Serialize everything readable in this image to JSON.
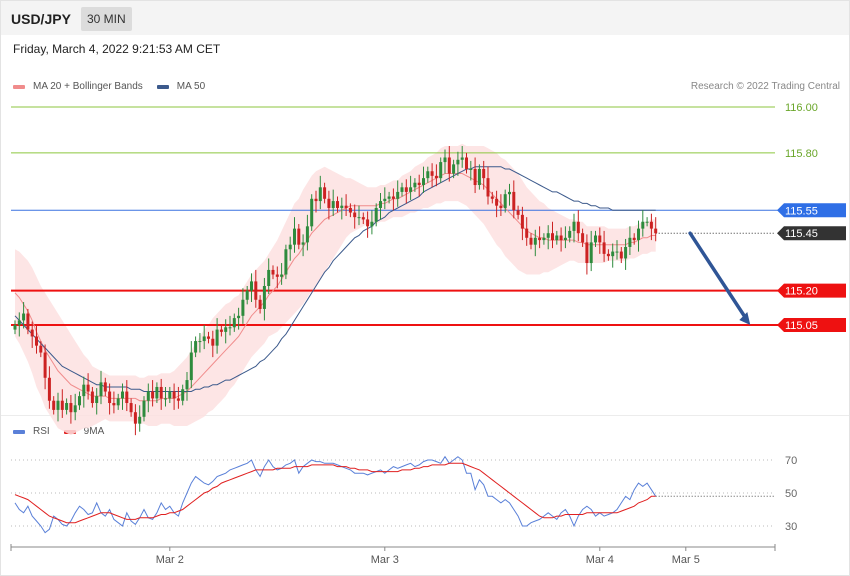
{
  "header": {
    "symbol": "USD/JPY",
    "timeframe": "30 MIN"
  },
  "datetime": "Friday, March 4, 2022 9:21:53 AM CET",
  "copyright": "Research © 2022 Trading Central",
  "colors": {
    "up": "#2e8b3d",
    "down": "#cc2222",
    "ma20": "#f08c8c",
    "band_fill": "#fde0e0",
    "ma50": "#3c5a8c",
    "support": "#ee1111",
    "green_level": "#8cc63f",
    "blue_level": "#3a72e0",
    "current": "#333333",
    "arrow": "#2f5596",
    "rsi": "#5a80d8",
    "rsi_ma": "#e02020"
  },
  "chart_data": [
    {
      "type": "candlestick",
      "symbol": "USD/JPY",
      "timeframe": "30 MIN",
      "legend": [
        {
          "name": "MA 20 + Bollinger Bands",
          "color": "#f08c8c"
        },
        {
          "name": "MA 50",
          "color": "#3c5a8c"
        }
      ],
      "legend_position": "top-left",
      "ylim": [
        114.56,
        116.07
      ],
      "x_ticks": [
        {
          "label": "Mar 2",
          "index": 36
        },
        {
          "label": "Mar 3",
          "index": 86
        },
        {
          "label": "Mar 4",
          "index": 136
        },
        {
          "label": "Mar 5",
          "index": 156
        }
      ],
      "levels": [
        {
          "label": "116.00",
          "value": 116.0,
          "style": "resistance",
          "color": "#8cc63f"
        },
        {
          "label": "115.80",
          "value": 115.8,
          "style": "resistance",
          "color": "#8cc63f"
        },
        {
          "label": "115.55",
          "value": 115.55,
          "style": "pivot",
          "color": "#3a72e0"
        },
        {
          "label": "115.45",
          "value": 115.45,
          "style": "current",
          "color": "#333333"
        },
        {
          "label": "115.20",
          "value": 115.2,
          "style": "support",
          "color": "#ee1111"
        },
        {
          "label": "115.05",
          "value": 115.05,
          "style": "support",
          "color": "#ee1111"
        }
      ],
      "forecast_arrow": {
        "from": {
          "index": 157,
          "value": 115.45
        },
        "to": {
          "index": 171,
          "value": 115.05
        }
      },
      "close": [
        115.05,
        115.07,
        115.1,
        115.03,
        115.0,
        114.96,
        114.93,
        114.82,
        114.72,
        114.68,
        114.72,
        114.68,
        114.71,
        114.67,
        114.7,
        114.74,
        114.79,
        114.76,
        114.71,
        114.74,
        114.8,
        114.76,
        114.71,
        114.7,
        114.73,
        114.76,
        114.71,
        114.67,
        114.62,
        114.65,
        114.72,
        114.76,
        114.73,
        114.78,
        114.73,
        114.73,
        114.76,
        114.73,
        114.72,
        114.77,
        114.81,
        114.93,
        114.98,
        114.98,
        115.0,
        114.99,
        114.96,
        115.03,
        115.02,
        115.04,
        115.04,
        115.08,
        115.09,
        115.16,
        115.2,
        115.24,
        115.16,
        115.12,
        115.22,
        115.29,
        115.27,
        115.26,
        115.27,
        115.38,
        115.4,
        115.47,
        115.4,
        115.41,
        115.48,
        115.6,
        115.59,
        115.65,
        115.6,
        115.56,
        115.59,
        115.56,
        115.57,
        115.56,
        115.54,
        115.52,
        115.52,
        115.51,
        115.48,
        115.5,
        115.56,
        115.59,
        115.6,
        115.61,
        115.6,
        115.63,
        115.65,
        115.63,
        115.65,
        115.67,
        115.66,
        115.69,
        115.72,
        115.7,
        115.69,
        115.76,
        115.78,
        115.71,
        115.75,
        115.77,
        115.78,
        115.73,
        115.73,
        115.66,
        115.73,
        115.69,
        115.61,
        115.6,
        115.57,
        115.56,
        115.62,
        115.63,
        115.55,
        115.53,
        115.47,
        115.43,
        115.4,
        115.43,
        115.42,
        115.43,
        115.45,
        115.42,
        115.44,
        115.42,
        115.43,
        115.46,
        115.5,
        115.45,
        115.41,
        115.32,
        115.41,
        115.44,
        115.41,
        115.36,
        115.35,
        115.37,
        115.37,
        115.34,
        115.39,
        115.43,
        115.42,
        115.47,
        115.5,
        115.5,
        115.47,
        115.45
      ],
      "ma20": [
        115.19,
        115.17,
        115.14,
        115.11,
        115.07,
        115.02,
        114.98,
        114.94,
        114.91,
        114.88,
        114.85,
        114.83,
        114.81,
        114.79,
        114.78,
        114.77,
        114.76,
        114.75,
        114.74,
        114.74,
        114.74,
        114.74,
        114.73,
        114.73,
        114.73,
        114.73,
        114.73,
        114.73,
        114.73,
        114.72,
        114.72,
        114.72,
        114.72,
        114.72,
        114.73,
        114.73,
        114.73,
        114.73,
        114.74,
        114.75,
        114.76,
        114.78,
        114.8,
        114.82,
        114.84,
        114.86,
        114.88,
        114.9,
        114.92,
        114.94,
        114.96,
        114.98,
        115.0,
        115.03,
        115.06,
        115.09,
        115.11,
        115.13,
        115.15,
        115.18,
        115.2,
        115.22,
        115.25,
        115.28,
        115.31,
        115.34,
        115.36,
        115.39,
        115.42,
        115.45,
        115.47,
        115.49,
        115.51,
        115.52,
        115.53,
        115.54,
        115.55,
        115.56,
        115.57,
        115.57,
        115.57,
        115.57,
        115.57,
        115.57,
        115.57,
        115.58,
        115.58,
        115.59,
        115.6,
        115.6,
        115.61,
        115.62,
        115.63,
        115.64,
        115.65,
        115.66,
        115.67,
        115.68,
        115.69,
        115.7,
        115.71,
        115.71,
        115.71,
        115.71,
        115.71,
        115.7,
        115.69,
        115.68,
        115.67,
        115.66,
        115.64,
        115.62,
        115.6,
        115.58,
        115.56,
        115.54,
        115.52,
        115.5,
        115.48,
        115.46,
        115.45,
        115.44,
        115.43,
        115.43,
        115.42,
        115.42,
        115.42,
        115.42,
        115.42,
        115.42,
        115.42,
        115.41,
        115.41,
        115.4,
        115.4,
        115.4,
        115.4,
        115.4,
        115.4,
        115.4,
        115.4,
        115.4,
        115.4,
        115.41,
        115.41,
        115.42,
        115.43,
        115.43,
        115.44,
        115.44
      ],
      "band_width": [
        0.19,
        0.2,
        0.21,
        0.22,
        0.23,
        0.24,
        0.24,
        0.25,
        0.25,
        0.25,
        0.25,
        0.24,
        0.23,
        0.22,
        0.2,
        0.18,
        0.16,
        0.15,
        0.13,
        0.12,
        0.11,
        0.1,
        0.1,
        0.1,
        0.1,
        0.1,
        0.1,
        0.1,
        0.1,
        0.1,
        0.1,
        0.11,
        0.11,
        0.11,
        0.11,
        0.11,
        0.11,
        0.12,
        0.13,
        0.14,
        0.15,
        0.16,
        0.17,
        0.18,
        0.19,
        0.19,
        0.2,
        0.2,
        0.2,
        0.2,
        0.19,
        0.19,
        0.18,
        0.18,
        0.18,
        0.18,
        0.18,
        0.18,
        0.18,
        0.18,
        0.19,
        0.2,
        0.21,
        0.22,
        0.23,
        0.24,
        0.24,
        0.25,
        0.25,
        0.25,
        0.25,
        0.24,
        0.23,
        0.21,
        0.19,
        0.17,
        0.15,
        0.13,
        0.12,
        0.11,
        0.1,
        0.09,
        0.08,
        0.08,
        0.08,
        0.08,
        0.08,
        0.08,
        0.08,
        0.08,
        0.09,
        0.09,
        0.09,
        0.1,
        0.1,
        0.1,
        0.11,
        0.11,
        0.11,
        0.12,
        0.12,
        0.12,
        0.12,
        0.12,
        0.13,
        0.13,
        0.14,
        0.15,
        0.16,
        0.17,
        0.18,
        0.19,
        0.2,
        0.2,
        0.21,
        0.21,
        0.21,
        0.21,
        0.2,
        0.19,
        0.18,
        0.17,
        0.16,
        0.15,
        0.14,
        0.13,
        0.12,
        0.11,
        0.1,
        0.09,
        0.09,
        0.09,
        0.09,
        0.08,
        0.08,
        0.08,
        0.08,
        0.08,
        0.07,
        0.07,
        0.07,
        0.07,
        0.07,
        0.07,
        0.07,
        0.07,
        0.07,
        0.07,
        0.07,
        0.07
      ],
      "ma50": [
        115.09,
        115.07,
        115.05,
        115.03,
        115.01,
        114.99,
        114.97,
        114.95,
        114.93,
        114.91,
        114.89,
        114.87,
        114.86,
        114.85,
        114.84,
        114.83,
        114.82,
        114.81,
        114.8,
        114.79,
        114.79,
        114.78,
        114.78,
        114.78,
        114.78,
        114.78,
        114.78,
        114.77,
        114.77,
        114.77,
        114.76,
        114.76,
        114.76,
        114.76,
        114.76,
        114.76,
        114.76,
        114.76,
        114.76,
        114.76,
        114.76,
        114.76,
        114.77,
        114.77,
        114.78,
        114.78,
        114.79,
        114.79,
        114.8,
        114.81,
        114.81,
        114.82,
        114.83,
        114.84,
        114.85,
        114.86,
        114.87,
        114.89,
        114.9,
        114.92,
        114.94,
        114.96,
        114.99,
        115.01,
        115.04,
        115.07,
        115.1,
        115.13,
        115.16,
        115.19,
        115.22,
        115.25,
        115.28,
        115.3,
        115.33,
        115.35,
        115.37,
        115.39,
        115.41,
        115.43,
        115.44,
        115.46,
        115.47,
        115.48,
        115.5,
        115.51,
        115.52,
        115.54,
        115.55,
        115.56,
        115.57,
        115.58,
        115.59,
        115.6,
        115.61,
        115.63,
        115.64,
        115.65,
        115.66,
        115.67,
        115.68,
        115.69,
        115.7,
        115.71,
        115.72,
        115.73,
        115.73,
        115.74,
        115.74,
        115.74,
        115.74,
        115.74,
        115.74,
        115.74,
        115.73,
        115.73,
        115.72,
        115.71,
        115.7,
        115.69,
        115.68,
        115.67,
        115.66,
        115.65,
        115.64,
        115.63,
        115.63,
        115.62,
        115.61,
        115.6,
        115.59,
        115.59,
        115.58,
        115.58,
        115.57,
        115.57,
        115.56,
        115.56,
        115.56,
        115.55,
        115.55,
        115.55,
        115.55,
        115.55,
        115.55,
        115.55,
        115.55,
        115.55,
        115.55,
        115.55
      ]
    },
    {
      "type": "line",
      "name": "RSI",
      "legend": [
        {
          "name": "RSI",
          "color": "#5a80d8"
        },
        {
          "name": "9MA",
          "color": "#e02020"
        }
      ],
      "legend_position": "top-left",
      "ylim": [
        18,
        76
      ],
      "y_ticks": [
        70,
        50,
        30
      ],
      "series": [
        {
          "name": "RSI",
          "values": [
            44,
            40,
            38,
            42,
            36,
            33,
            30,
            26,
            28,
            36,
            34,
            31,
            30,
            33,
            38,
            42,
            40,
            37,
            38,
            44,
            38,
            36,
            40,
            34,
            32,
            30,
            38,
            33,
            31,
            35,
            40,
            35,
            34,
            38,
            44,
            40,
            42,
            38,
            36,
            44,
            50,
            56,
            60,
            58,
            56,
            55,
            57,
            60,
            61,
            62,
            64,
            65,
            66,
            67,
            68,
            70,
            64,
            60,
            66,
            70,
            66,
            64,
            65,
            67,
            68,
            70,
            62,
            66,
            68,
            70,
            69,
            69,
            68,
            68,
            68,
            67,
            66,
            65,
            64,
            62,
            62,
            62,
            61,
            62,
            63,
            64,
            62,
            64,
            66,
            65,
            66,
            67,
            68,
            66,
            67,
            69,
            70,
            70,
            69,
            68,
            72,
            68,
            70,
            72,
            70,
            62,
            62,
            52,
            58,
            55,
            48,
            48,
            46,
            44,
            46,
            44,
            40,
            36,
            30,
            30,
            32,
            33,
            34,
            36,
            38,
            36,
            34,
            38,
            40,
            36,
            30,
            36,
            40,
            42,
            40,
            36,
            38,
            36,
            37,
            38,
            40,
            44,
            48,
            46,
            52,
            56,
            54,
            56,
            52,
            48
          ]
        },
        {
          "name": "9MA",
          "values": [
            49,
            48,
            47,
            46,
            44,
            42,
            40,
            38,
            36,
            35,
            34,
            33,
            32,
            32,
            32,
            33,
            34,
            35,
            36,
            37,
            38,
            38,
            38,
            37,
            36,
            35,
            34,
            34,
            34,
            35,
            35,
            35,
            35,
            36,
            37,
            37,
            38,
            38,
            39,
            40,
            42,
            44,
            46,
            48,
            50,
            51,
            53,
            54,
            56,
            57,
            58,
            59,
            60,
            61,
            62,
            63,
            64,
            64,
            64,
            64,
            64,
            65,
            65,
            65,
            65,
            66,
            66,
            66,
            66,
            67,
            67,
            67,
            67,
            67,
            67,
            66,
            66,
            66,
            65,
            65,
            64,
            64,
            64,
            63,
            63,
            63,
            63,
            63,
            63,
            63,
            64,
            64,
            64,
            65,
            65,
            66,
            66,
            67,
            67,
            67,
            67,
            68,
            68,
            68,
            68,
            67,
            66,
            65,
            64,
            62,
            60,
            58,
            56,
            54,
            52,
            50,
            48,
            46,
            44,
            42,
            40,
            38,
            36,
            35,
            35,
            35,
            36,
            36,
            37,
            37,
            37,
            37,
            37,
            38,
            38,
            38,
            38,
            38,
            38,
            38,
            38,
            39,
            40,
            41,
            42,
            44,
            45,
            46,
            48,
            48
          ]
        }
      ],
      "x_ticks": [
        "Mar 2",
        "Mar 3",
        "Mar 4",
        "Mar 5"
      ]
    }
  ]
}
